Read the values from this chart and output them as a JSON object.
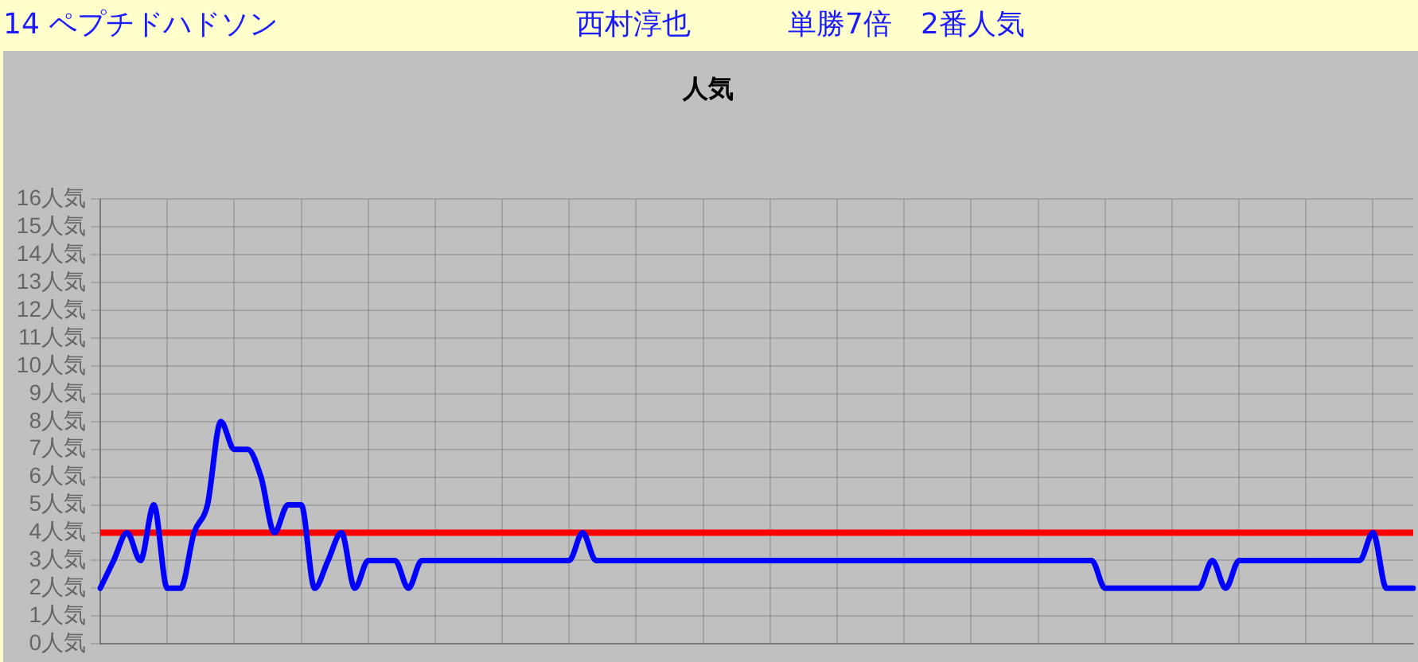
{
  "chart_data": {
    "type": "line",
    "title": "人気",
    "annotations": [
      "14 ペプチドハドソン",
      "西村淳也",
      "単勝7倍　2番人気"
    ],
    "categories": [
      null,
      null,
      null,
      null,
      null,
      null,
      null,
      null,
      null,
      null,
      null,
      null,
      null,
      null,
      null,
      null,
      null,
      null,
      null,
      null,
      null,
      null,
      null,
      null,
      null,
      null,
      null,
      null,
      null,
      null,
      null,
      null,
      null,
      null,
      null,
      null,
      null,
      null,
      null,
      null,
      null,
      null,
      null,
      null,
      null,
      null,
      null,
      null,
      null,
      null,
      null,
      null,
      null,
      null,
      null,
      null,
      null,
      null,
      null,
      null,
      null,
      null,
      null,
      null,
      null,
      null,
      null,
      null,
      null,
      null,
      null,
      null,
      null,
      null,
      null,
      null,
      null,
      null,
      null,
      null,
      null,
      null,
      null,
      null,
      null,
      null,
      null,
      null,
      null,
      null,
      null,
      null,
      null,
      null,
      null,
      null,
      null,
      null,
      null
    ],
    "series": [
      {
        "color": "#0000ff",
        "values": [
          2,
          3,
          4,
          3,
          5,
          2,
          2,
          4,
          5,
          8,
          7,
          7,
          6,
          4,
          5,
          5,
          2,
          3,
          4,
          2,
          3,
          3,
          3,
          2,
          3,
          3,
          3,
          3,
          3,
          3,
          3,
          3,
          3,
          3,
          3,
          3,
          4,
          3,
          3,
          3,
          3,
          3,
          3,
          3,
          3,
          3,
          3,
          3,
          3,
          3,
          3,
          3,
          3,
          3,
          3,
          3,
          3,
          3,
          3,
          3,
          3,
          3,
          3,
          3,
          3,
          3,
          3,
          3,
          3,
          3,
          3,
          3,
          3,
          3,
          3,
          2,
          2,
          2,
          2,
          2,
          2,
          2,
          2,
          3,
          2,
          3,
          3,
          3,
          3,
          3,
          3,
          3,
          3,
          3,
          3,
          4,
          2,
          2,
          2
        ]
      }
    ],
    "ylim": [
      0,
      16
    ],
    "yticks": [
      {
        "value": 0,
        "label": "0人気"
      },
      {
        "value": 1,
        "label": "1人気"
      },
      {
        "value": 2,
        "label": "2人気"
      },
      {
        "value": 3,
        "label": "3人気"
      },
      {
        "value": 4,
        "label": "4人気"
      },
      {
        "value": 5,
        "label": "5人気"
      },
      {
        "value": 6,
        "label": "6人気"
      },
      {
        "value": 7,
        "label": "7人気"
      },
      {
        "value": 8,
        "label": "8人気"
      },
      {
        "value": 9,
        "label": "9人気"
      },
      {
        "value": 10,
        "label": "10人気"
      },
      {
        "value": 11,
        "label": "11人気"
      },
      {
        "value": 12,
        "label": "12人気"
      },
      {
        "value": 13,
        "label": "13人気"
      },
      {
        "value": 14,
        "label": "14人気"
      },
      {
        "value": 15,
        "label": "15人気"
      },
      {
        "value": 16,
        "label": "16人気"
      }
    ],
    "ref_lines": [
      {
        "axis": "y",
        "value": 4,
        "color": "#ff0000"
      }
    ],
    "grid": true,
    "marker": "none"
  }
}
